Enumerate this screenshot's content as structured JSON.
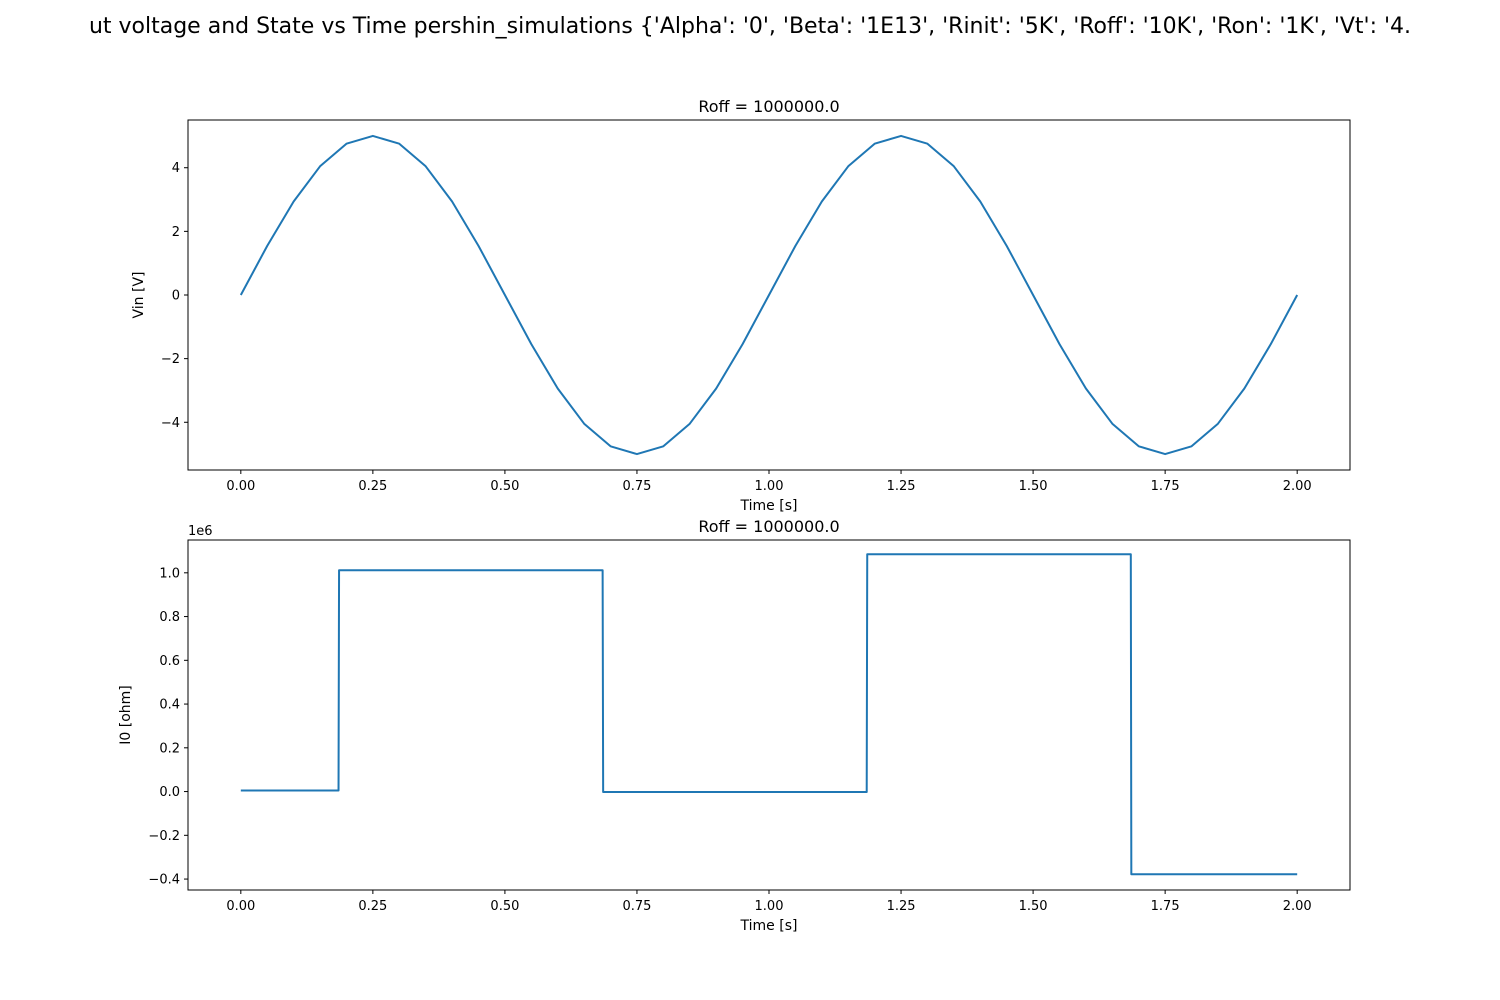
{
  "suptitle": "ut voltage and State vs Time pershin_simulations {'Alpha': '0', 'Beta': '1E13', 'Rinit': '5K', 'Roff': '10K', 'Ron': '1K', 'Vt': '4.",
  "colors": {
    "line": "#1f77b4",
    "axes": "#000000",
    "background": "#ffffff"
  },
  "chart_data": [
    {
      "type": "line",
      "title": "Roff = 1000000.0",
      "xlabel": "Time [s]",
      "ylabel": "Vin [V]",
      "xlim": [
        -0.1,
        2.1
      ],
      "ylim": [
        -5.5,
        5.5
      ],
      "xticks": [
        0.0,
        0.25,
        0.5,
        0.75,
        1.0,
        1.25,
        1.5,
        1.75,
        2.0
      ],
      "xtick_labels": [
        "0.00",
        "0.25",
        "0.50",
        "0.75",
        "1.00",
        "1.25",
        "1.50",
        "1.75",
        "2.00"
      ],
      "yticks": [
        -4,
        -2,
        0,
        2,
        4
      ],
      "ytick_labels": [
        "−4",
        "−2",
        "0",
        "2",
        "4"
      ],
      "grid": false,
      "series": [
        {
          "x": [
            0.0,
            0.05,
            0.1,
            0.15,
            0.2,
            0.25,
            0.3,
            0.35,
            0.4,
            0.45,
            0.5,
            0.55,
            0.6,
            0.65,
            0.7,
            0.75,
            0.8,
            0.85,
            0.9,
            0.95,
            1.0,
            1.05,
            1.1,
            1.15,
            1.2,
            1.25,
            1.3,
            1.35,
            1.4,
            1.45,
            1.5,
            1.55,
            1.6,
            1.65,
            1.7,
            1.75,
            1.8,
            1.85,
            1.9,
            1.95,
            2.0
          ],
          "y": [
            0.0,
            1.545,
            2.939,
            4.045,
            4.755,
            5.0,
            4.755,
            4.045,
            2.939,
            1.545,
            0.0,
            -1.545,
            -2.939,
            -4.045,
            -4.755,
            -5.0,
            -4.755,
            -4.045,
            -2.939,
            -1.545,
            0.0,
            1.545,
            2.939,
            4.045,
            4.755,
            5.0,
            4.755,
            4.045,
            2.939,
            1.545,
            0.0,
            -1.545,
            -2.939,
            -4.045,
            -4.755,
            -5.0,
            -4.755,
            -4.045,
            -2.939,
            -1.545,
            0.0
          ]
        }
      ]
    },
    {
      "type": "line",
      "title": "Roff = 1000000.0",
      "xlabel": "Time [s]",
      "ylabel": "I0 [ohm]",
      "offset_label": "1e6",
      "xlim": [
        -0.1,
        2.1
      ],
      "ylim": [
        -0.45,
        1.15
      ],
      "xticks": [
        0.0,
        0.25,
        0.5,
        0.75,
        1.0,
        1.25,
        1.5,
        1.75,
        2.0
      ],
      "xtick_labels": [
        "0.00",
        "0.25",
        "0.50",
        "0.75",
        "1.00",
        "1.25",
        "1.50",
        "1.75",
        "2.00"
      ],
      "yticks": [
        -0.4,
        -0.2,
        0.0,
        0.2,
        0.4,
        0.6,
        0.8,
        1.0
      ],
      "ytick_labels": [
        "−0.4",
        "−0.2",
        "0.0",
        "0.2",
        "0.4",
        "0.6",
        "0.8",
        "1.0"
      ],
      "grid": false,
      "series": [
        {
          "x": [
            0.0,
            0.185,
            0.186,
            0.685,
            0.686,
            1.185,
            1.186,
            1.685,
            1.686,
            2.0
          ],
          "y": [
            0.005,
            0.005,
            1.012,
            1.012,
            -0.002,
            -0.002,
            1.085,
            1.085,
            -0.378,
            -0.378
          ]
        }
      ]
    }
  ]
}
